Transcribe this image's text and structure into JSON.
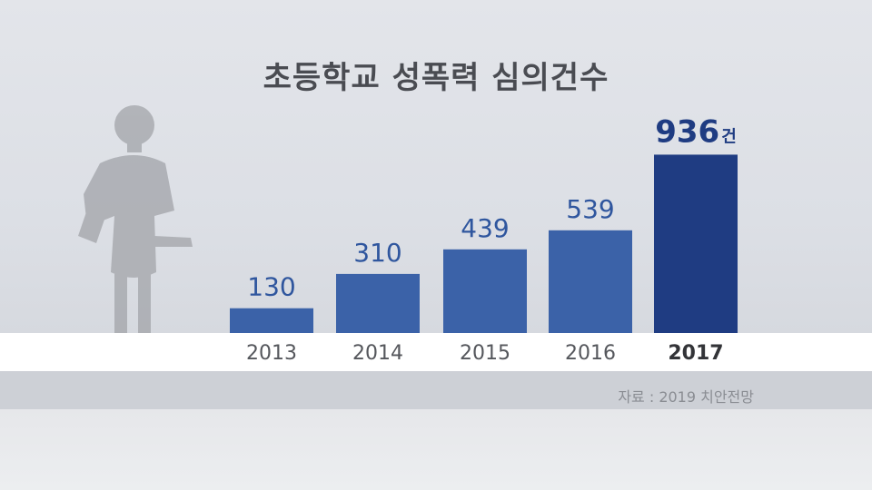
{
  "title": "초등학교 성폭력 심의건수",
  "source": "자료 : 2019 치안전망",
  "chart_data": {
    "type": "bar",
    "title": "초등학교 성폭력 심의건수",
    "categories": [
      "2013",
      "2014",
      "2015",
      "2016",
      "2017"
    ],
    "values": [
      130,
      310,
      439,
      539,
      936
    ],
    "value_labels": [
      "130",
      "310",
      "439",
      "539",
      "936"
    ],
    "highlight_unit": "건",
    "highlight_index": 4,
    "ylim": [
      0,
      1000
    ],
    "grid": false,
    "colors": {
      "bar": "#3b62a8",
      "highlight": "#1f3c82",
      "label": "#2f569e",
      "highlight_label": "#1f3c82"
    }
  }
}
